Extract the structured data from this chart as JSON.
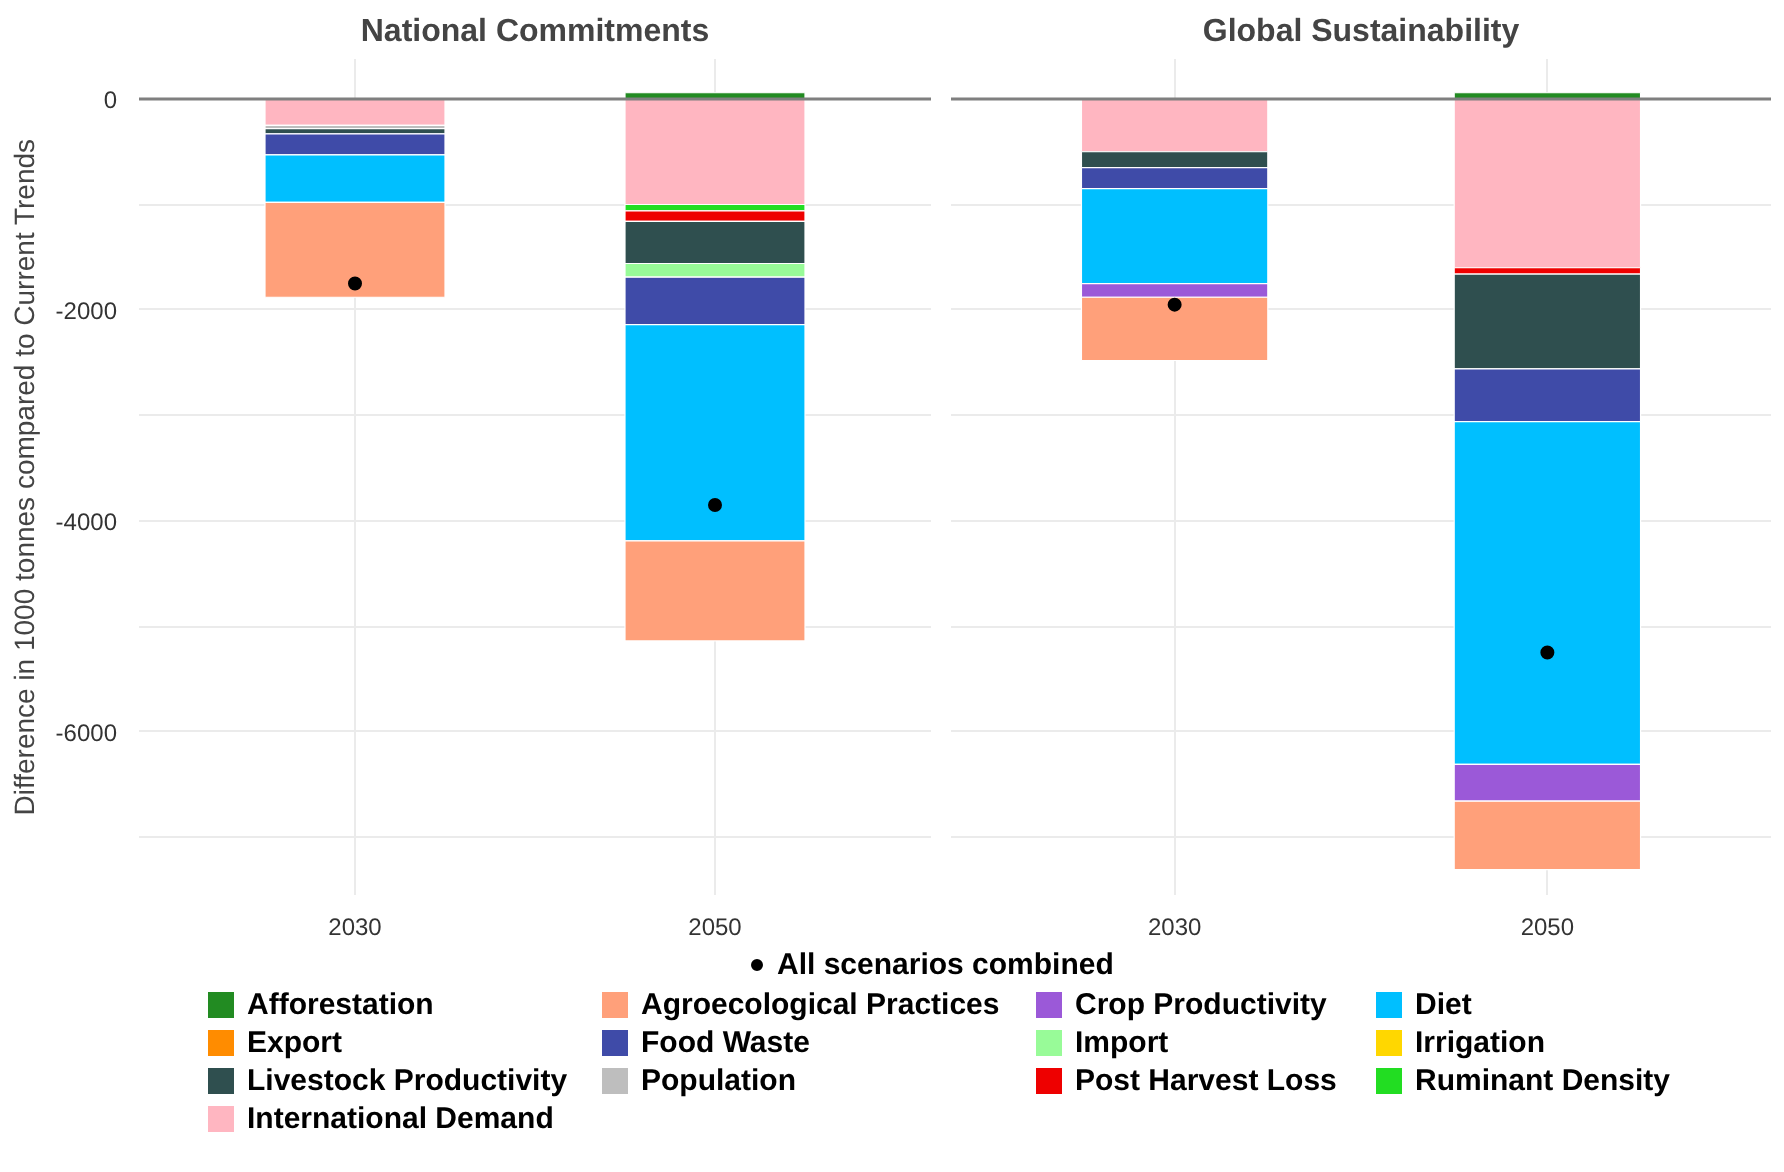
{
  "chart_data": [
    {
      "type": "bar",
      "title": "National Commitments",
      "ylabel": "Difference in 1000 tonnes compared to Current Trends",
      "categories": [
        "2030",
        "2050"
      ],
      "stacked": true,
      "ylim": [
        -7550,
        380
      ],
      "yticks": [
        0,
        -2000,
        -4000,
        -6000,
        {
          "value": -1000,
          "label": null
        },
        {
          "value": -3000,
          "label": null
        },
        {
          "value": -5000,
          "label": null
        },
        {
          "value": -7000,
          "label": null
        }
      ],
      "grid": true,
      "legend": "bottom",
      "ref_lines": [
        {
          "axis": "y",
          "value": 0,
          "label": null,
          "color": "#7f7f7f"
        }
      ],
      "series": [
        {
          "name": "International Demand",
          "color": "#ffb6c1",
          "values": [
            -250,
            -1000
          ]
        },
        {
          "name": "Ruminant Density",
          "color": "#22dd22",
          "values": [
            null,
            -60
          ]
        },
        {
          "name": "Post Harvest Loss",
          "color": "#ee0000",
          "values": [
            null,
            -100
          ]
        },
        {
          "name": "Population",
          "color": "#bebebe",
          "values": [
            -30,
            null
          ]
        },
        {
          "name": "Livestock Productivity",
          "color": "#2f4f4f",
          "values": [
            -50,
            -400
          ]
        },
        {
          "name": "Irrigation",
          "color": "#ffd700",
          "values": [
            null,
            null
          ]
        },
        {
          "name": "Import",
          "color": "#98fb98",
          "values": [
            null,
            -130
          ]
        },
        {
          "name": "Food Waste",
          "color": "#3f4ba8",
          "values": [
            -200,
            -450
          ]
        },
        {
          "name": "Export",
          "color": "#ff8c00",
          "values": [
            null,
            null
          ]
        },
        {
          "name": "Diet",
          "color": "#00bfff",
          "values": [
            -450,
            -2050
          ]
        },
        {
          "name": "Crop Productivity",
          "color": "#9b59d8",
          "values": [
            null,
            null
          ]
        },
        {
          "name": "Agroecological Practices",
          "color": "#ffa07a",
          "values": [
            -900,
            -950
          ]
        },
        {
          "name": "Afforestation",
          "color": "#228b22",
          "values": [
            null,
            60
          ]
        },
        {
          "name": "All scenarios combined",
          "type": "scatter",
          "marker": "circle",
          "color": "#000000",
          "values": [
            -1750,
            -3850
          ]
        }
      ]
    },
    {
      "type": "bar",
      "title": "Global Sustainability",
      "categories": [
        "2030",
        "2050"
      ],
      "stacked": true,
      "ylim": [
        -7550,
        380
      ],
      "yticks": [
        0,
        -2000,
        -4000,
        -6000,
        {
          "value": -1000,
          "label": null
        },
        {
          "value": -3000,
          "label": null
        },
        {
          "value": -5000,
          "label": null
        },
        {
          "value": -7000,
          "label": null
        }
      ],
      "tick_labels": "x",
      "grid": true,
      "ref_lines": [
        {
          "axis": "y",
          "value": 0,
          "label": null,
          "color": "#7f7f7f"
        }
      ],
      "series": [
        {
          "color": "#ffb6c1",
          "values": [
            -500,
            -1600
          ]
        },
        {
          "color": "#ee0000",
          "values": [
            null,
            -60
          ]
        },
        {
          "color": "#2f4f4f",
          "values": [
            -150,
            -900
          ]
        },
        {
          "color": "#3f4ba8",
          "values": [
            -200,
            -500
          ]
        },
        {
          "color": "#00bfff",
          "values": [
            -900,
            -3250
          ]
        },
        {
          "color": "#9b59d8",
          "values": [
            -130,
            -350
          ]
        },
        {
          "color": "#ffa07a",
          "values": [
            -600,
            -650
          ]
        },
        {
          "color": "#228b22",
          "values": [
            null,
            60
          ]
        },
        {
          "type": "scatter",
          "marker": "circle",
          "color": "#000000",
          "values": [
            -1950,
            -5250
          ]
        }
      ]
    }
  ]
}
